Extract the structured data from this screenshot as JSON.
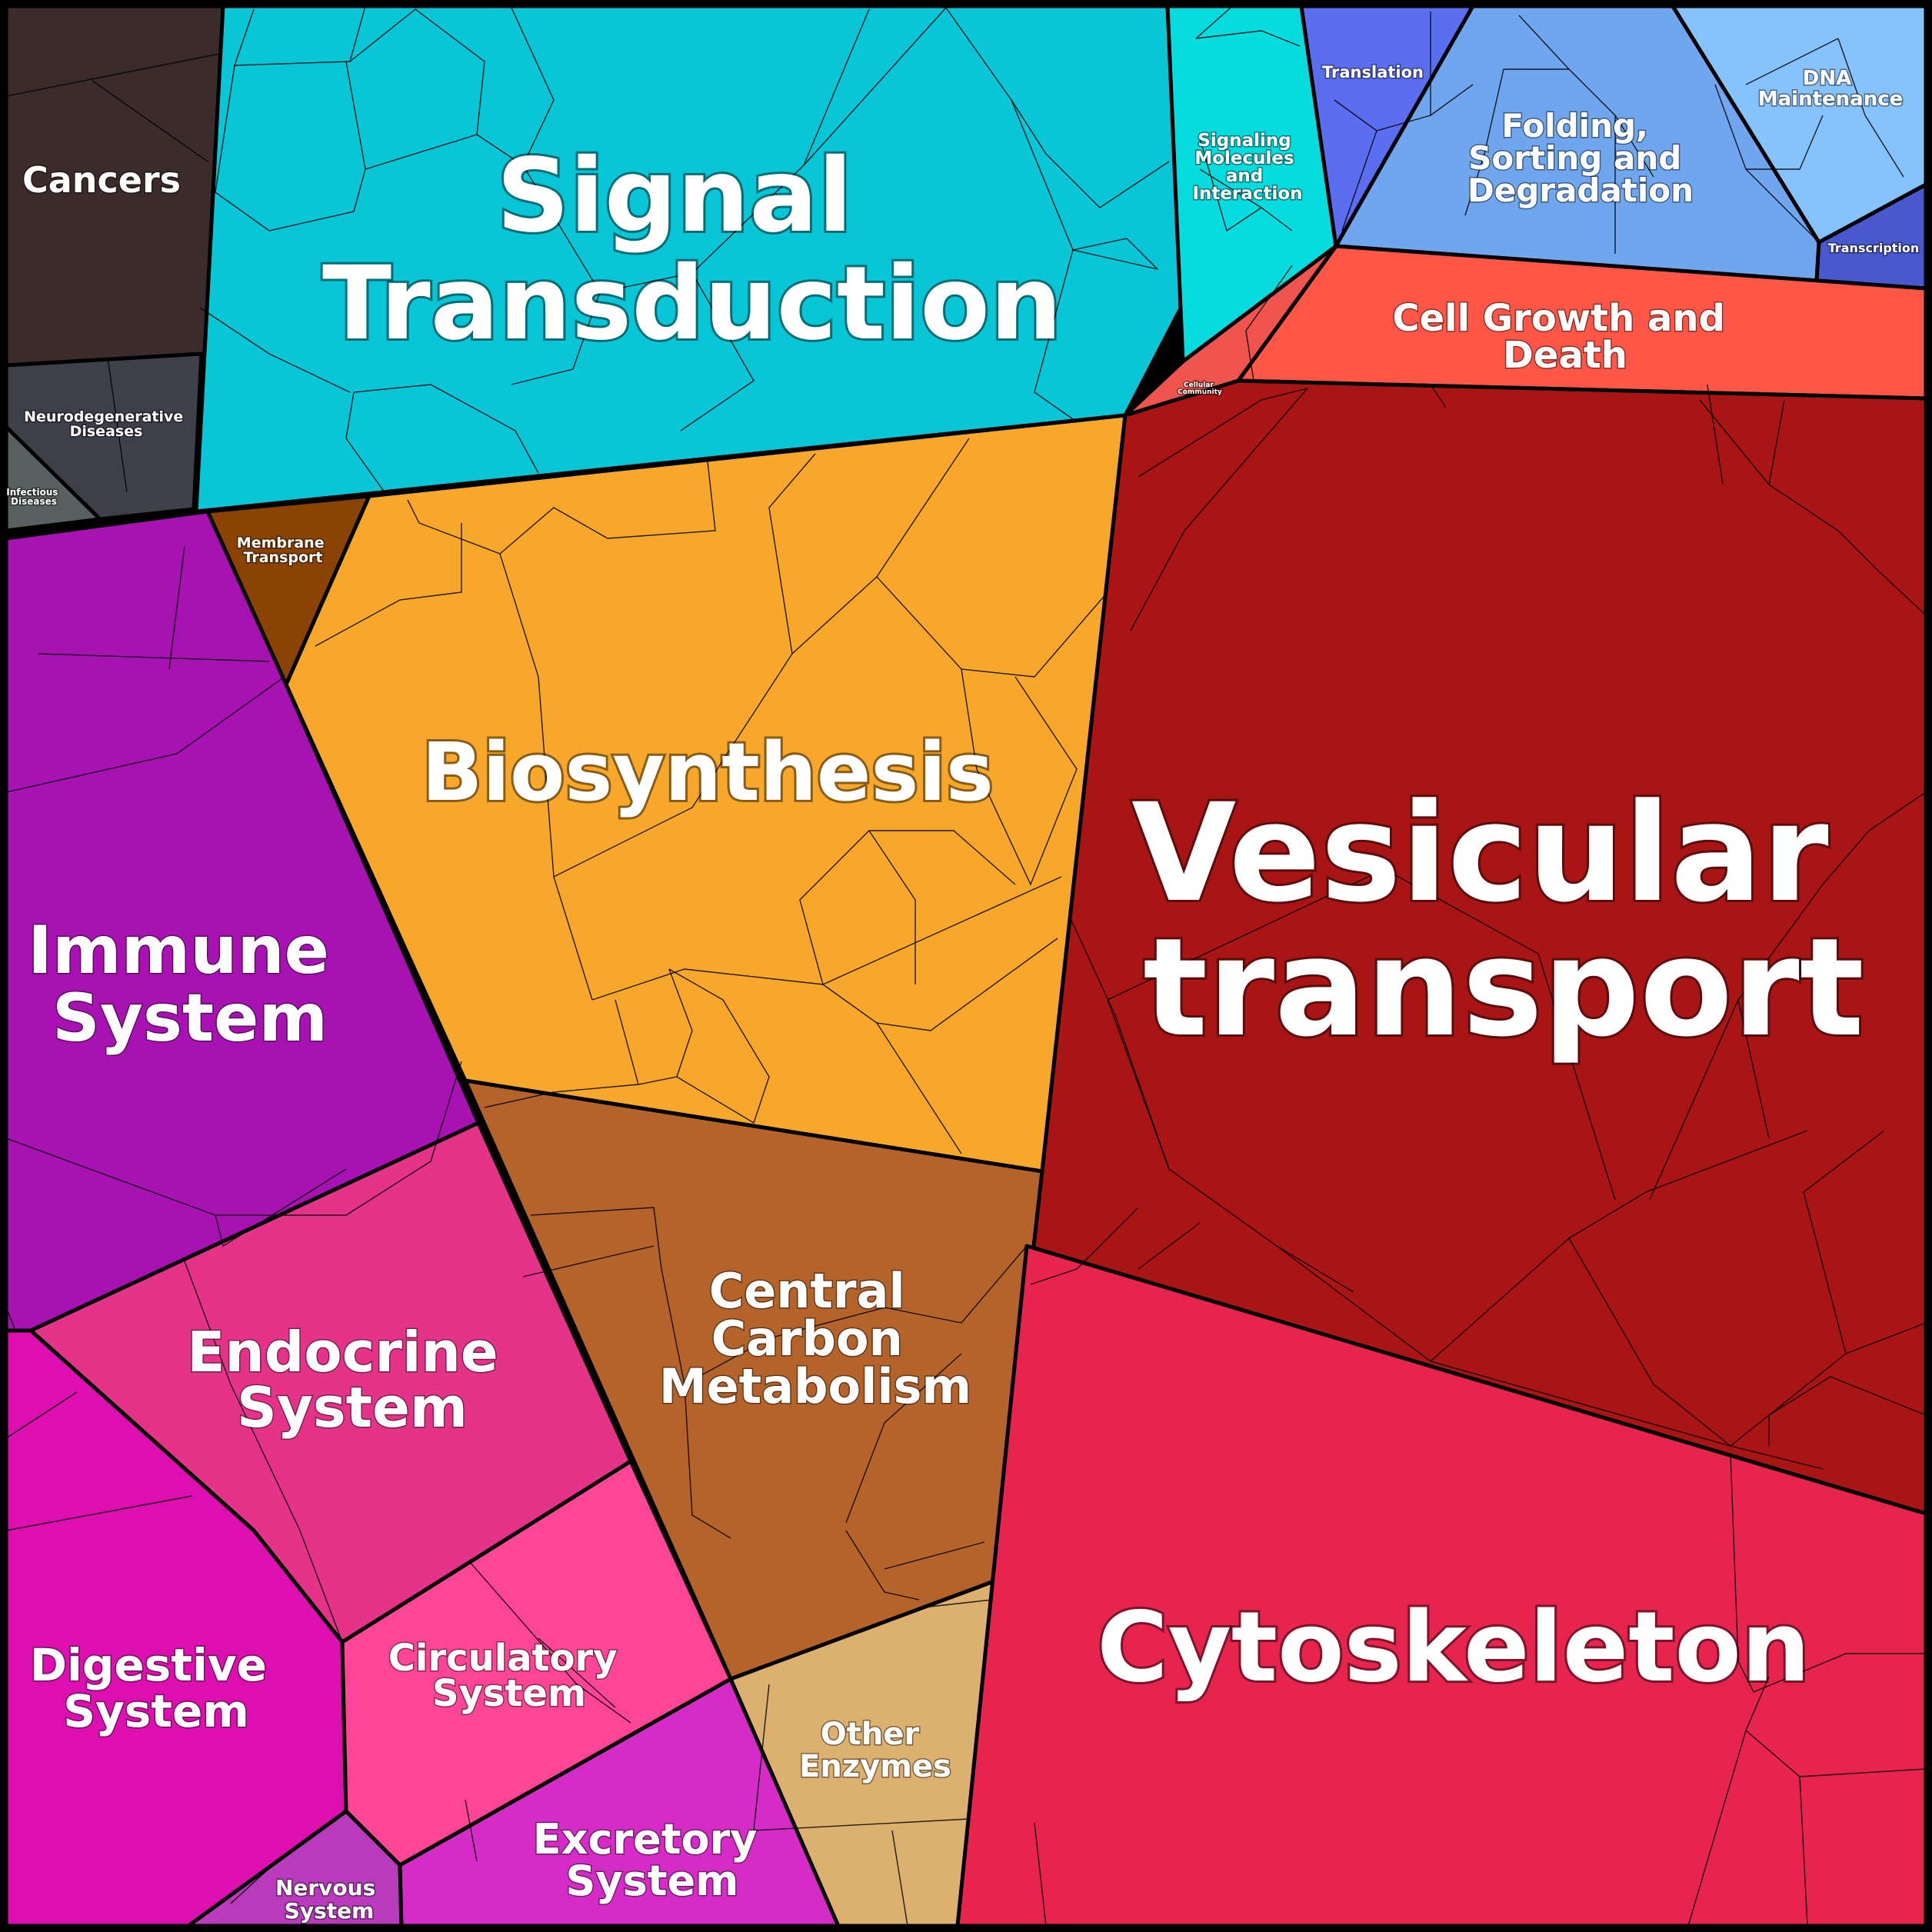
{
  "regions": [
    {
      "id": "cancers",
      "color": "#3b2b2b",
      "lines": [
        "Cancers"
      ]
    },
    {
      "id": "neurodegenerative-diseases",
      "color": "#3f3f49",
      "lines": [
        "Neurodegenerative",
        "Diseases"
      ]
    },
    {
      "id": "infectious-diseases",
      "color": "#5a5f60",
      "lines": [
        "Infectious",
        "Diseases"
      ]
    },
    {
      "id": "signal-transduction",
      "color": "#08c6d6",
      "lines": [
        "Signal",
        "Transduction"
      ]
    },
    {
      "id": "signaling-molecules",
      "color": "#06dcdd",
      "lines": [
        "Signaling",
        "Molecules",
        "and",
        "Interaction"
      ]
    },
    {
      "id": "translation",
      "color": "#5b6ef0",
      "lines": [
        "Translation"
      ]
    },
    {
      "id": "folding-sorting",
      "color": "#6fa6ee",
      "lines": [
        "Folding,",
        "Sorting and",
        "Degradation"
      ]
    },
    {
      "id": "dna-maintenance",
      "color": "#86c2fb",
      "lines": [
        "DNA",
        "Maintenance"
      ]
    },
    {
      "id": "transcription",
      "color": "#4a58d0",
      "lines": [
        "Transcription"
      ]
    },
    {
      "id": "cell-growth-death",
      "color": "#ff5648",
      "lines": [
        "Cell Growth and",
        "Death"
      ]
    },
    {
      "id": "cellular-community",
      "color": "#f0544e",
      "lines": [
        "Cellular",
        "Community"
      ]
    },
    {
      "id": "membrane-transport",
      "color": "#8b4304",
      "lines": [
        "Membrane",
        "Transport"
      ]
    },
    {
      "id": "biosynthesis",
      "color": "#f7a82a",
      "lines": [
        "Biosynthesis"
      ]
    },
    {
      "id": "vesicular-transport",
      "color": "#a91515",
      "lines": [
        "Vesicular",
        "transport"
      ]
    },
    {
      "id": "immune-system",
      "color": "#a812b2",
      "lines": [
        "Immune",
        "System"
      ]
    },
    {
      "id": "central-carbon-metabolism",
      "color": "#b4632a",
      "lines": [
        "Central",
        "Carbon",
        "Metabolism"
      ]
    },
    {
      "id": "endocrine-system",
      "color": "#e6338a",
      "lines": [
        "Endocrine",
        "System"
      ]
    },
    {
      "id": "digestive-system",
      "color": "#dd0fb0",
      "lines": [
        "Digestive",
        "System"
      ]
    },
    {
      "id": "circulatory-system",
      "color": "#ff4596",
      "lines": [
        "Circulatory",
        "System"
      ]
    },
    {
      "id": "excretory-system",
      "color": "#d52cc8",
      "lines": [
        "Excretory",
        "System"
      ]
    },
    {
      "id": "nervous-system",
      "color": "#b83bbb",
      "lines": [
        "Nervous",
        "System"
      ]
    },
    {
      "id": "other-enzymes",
      "color": "#dcb06f",
      "lines": [
        "Other",
        "Enzymes"
      ]
    },
    {
      "id": "cytoskeleton",
      "color": "#e6244d",
      "lines": [
        "Cytoskeleton"
      ]
    }
  ]
}
